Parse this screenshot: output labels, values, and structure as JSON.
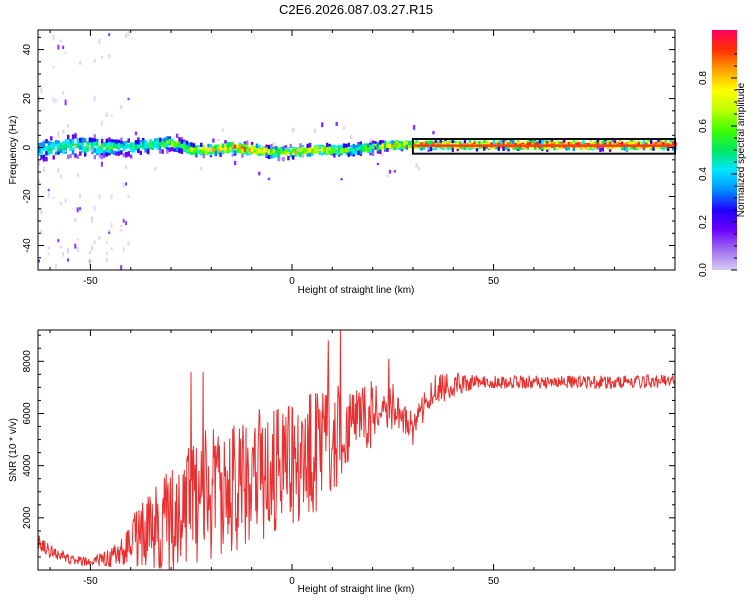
{
  "title": "C2E6.2026.087.03.27.R15",
  "colors": {
    "axis": "#000000",
    "snr_line": "#e83030",
    "overlay_band": "#111111",
    "overlay_core": "#ff3a20",
    "colormap": [
      "#d8ccf5",
      "#a070f0",
      "#6a00ff",
      "#2000ff",
      "#0090ff",
      "#00e8ff",
      "#00e860",
      "#40ff00",
      "#c0ff00",
      "#ffff00",
      "#ffa000",
      "#ff3000",
      "#ff0060"
    ]
  },
  "chart_data": [
    {
      "type": "heatmap",
      "name": "spectrogram",
      "xlabel": "Height of straight line (km)",
      "ylabel": "Frequency (Hz)",
      "xlim": [
        -63,
        95
      ],
      "ylim": [
        -50,
        48
      ],
      "xticks": [
        -50,
        0,
        50
      ],
      "yticks": [
        -40,
        -20,
        0,
        20,
        40
      ],
      "colorbar": {
        "label": "Normalized spectral amplitude",
        "range": [
          0.0,
          1.0
        ],
        "ticks": [
          "0.0",
          "0.2",
          "0.4",
          "0.6",
          "0.8"
        ]
      },
      "ridge": {
        "x": [
          -63,
          -55,
          -48,
          -40,
          -35,
          -30,
          -25,
          -20,
          -15,
          -10,
          -5,
          0,
          5,
          10,
          15,
          20,
          25,
          30,
          40,
          50,
          60,
          70,
          80,
          93
        ],
        "freq": [
          -1,
          1,
          0,
          0,
          1,
          2,
          -1,
          -1,
          0,
          -1,
          -2,
          -2,
          -1,
          -1,
          -1,
          0,
          1,
          1,
          1,
          1,
          1,
          1,
          1,
          1
        ],
        "amplitude": [
          0.45,
          0.5,
          0.55,
          0.5,
          0.55,
          0.6,
          0.65,
          0.75,
          0.85,
          0.8,
          0.7,
          0.75,
          0.75,
          0.65,
          0.55,
          0.65,
          0.75,
          0.8,
          0.85,
          0.9,
          0.95,
          0.95,
          0.95,
          0.95
        ],
        "spread_hz": [
          6,
          6,
          5,
          4,
          4,
          4,
          3,
          3,
          3,
          3,
          3,
          3,
          3,
          3,
          3,
          3,
          2,
          2,
          2,
          2,
          2,
          2,
          2,
          2
        ]
      },
      "overlay_band": {
        "x_range": [
          30,
          95
        ],
        "freq_range": [
          -1,
          2
        ]
      }
    },
    {
      "type": "line",
      "name": "snr",
      "xlabel": "Height of straight line (km)",
      "ylabel": "SNR (10 * v/v)",
      "xlim": [
        -63,
        95
      ],
      "ylim": [
        0,
        9200
      ],
      "xticks": [
        -50,
        0,
        50
      ],
      "yticks": [
        2000,
        4000,
        6000,
        8000
      ],
      "envelope": {
        "x": [
          -63,
          -60,
          -55,
          -50,
          -45,
          -40,
          -35,
          -30,
          -25,
          -20,
          -15,
          -10,
          -5,
          0,
          5,
          10,
          15,
          20,
          25,
          30,
          35,
          40,
          45,
          50,
          60,
          70,
          80,
          95
        ],
        "mean": [
          1100,
          700,
          400,
          300,
          500,
          1100,
          1600,
          1900,
          2600,
          3000,
          3200,
          3600,
          3700,
          3900,
          4500,
          5000,
          5500,
          6000,
          6300,
          5500,
          6900,
          7100,
          7200,
          7200,
          7200,
          7200,
          7200,
          7250
        ],
        "amplitude": [
          300,
          250,
          200,
          150,
          400,
          900,
          1500,
          2000,
          2500,
          2600,
          2600,
          2600,
          2500,
          2400,
          2400,
          2300,
          1500,
          1300,
          900,
          500,
          600,
          500,
          300,
          250,
          250,
          250,
          250,
          250
        ]
      },
      "peaks": [
        {
          "x": -25,
          "y": 7600
        },
        {
          "x": -22,
          "y": 7600
        },
        {
          "x": -20,
          "y": 1200
        },
        {
          "x": 9,
          "y": 8800
        },
        {
          "x": 12,
          "y": 9200
        },
        {
          "x": 24,
          "y": 8100
        },
        {
          "x": 29,
          "y": 5200
        },
        {
          "x": 30,
          "y": 4800
        }
      ]
    }
  ]
}
